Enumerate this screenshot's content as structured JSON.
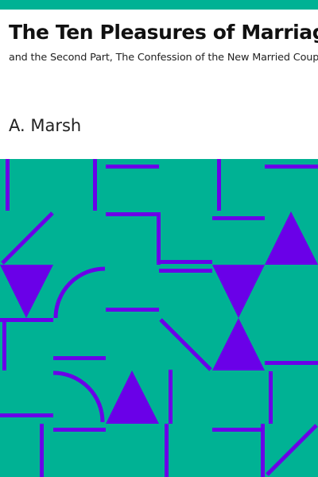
{
  "book": {
    "title": "The Ten Pleasures of Marriage",
    "subtitle": "and the Second Part, The Confession of the New Married Couple",
    "author": "A. Marsh"
  },
  "colors": {
    "accent": "#00b294",
    "background": "#ffffff",
    "pattern_background": "#00b294",
    "pattern_stroke": "#6a00e8",
    "text": "#111111"
  }
}
